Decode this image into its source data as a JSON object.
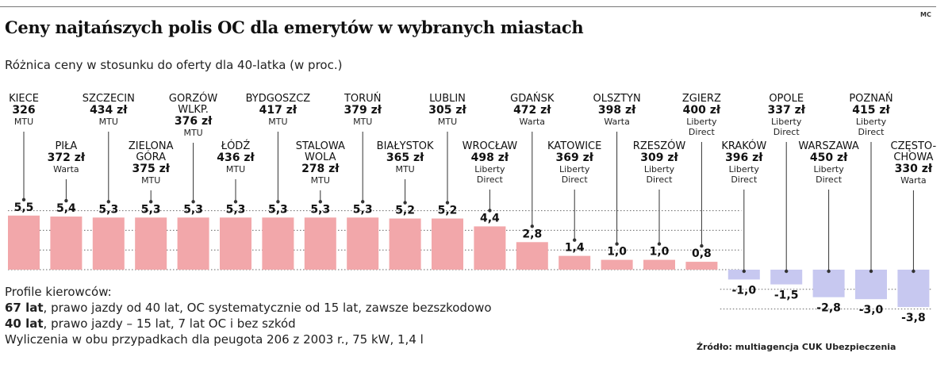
{
  "header": {
    "title": "Ceny najtańszych polis OC dla emerytów w wybranych miastach",
    "subtitle": "Różnica ceny w stosunku do oferty dla 40-latka (w proc.)",
    "corner_mark": "MC"
  },
  "footer": {
    "heading": "Profile kierowców:",
    "line1_bold": "67 lat",
    "line1_rest": ", prawo jazdy od 40 lat, OC systematycznie od 15 lat, zawsze bezszkodowo",
    "line2_bold": "40 lat",
    "line2_rest": ", prawo jazdy – 15 lat, 7 lat OC i bez szkód",
    "line3": "Wyliczenia w obu przypadkach dla peugota 206 z 2003 r., 75 kW, 1,4 l",
    "source": "Źródło: multiagencja CUK Ubezpieczenia"
  },
  "colors": {
    "positive_bar": "#f2a7aa",
    "negative_bar": "#c7c8f0",
    "leader": "#333333"
  },
  "chart_data": {
    "type": "bar",
    "title": "Ceny najtańszych polis OC dla emerytów w wybranych miastach",
    "ylabel": "Różnica ceny w stosunku do oferty dla 40-latka (w proc.)",
    "ylim": [
      -4,
      6
    ],
    "grid": true,
    "categories": [
      "KIECE",
      "PIŁA",
      "SZCZECIN",
      "ZIELONA GÓRA",
      "GORZÓW WLKP.",
      "ŁÓDŹ",
      "BYDGOSZCZ",
      "STALOWA WOLA",
      "TORUŃ",
      "BIAŁYSTOK",
      "LUBLIN",
      "WROCŁAW",
      "GDAŃSK",
      "KATOWICE",
      "OLSZTYN",
      "RZESZÓW",
      "ZGIERZ",
      "KRAKÓW",
      "OPOLE",
      "WARSZAWA",
      "POZNAŃ",
      "CZĘSTOCHOWA"
    ],
    "values": [
      5.5,
      5.4,
      5.3,
      5.3,
      5.3,
      5.3,
      5.3,
      5.3,
      5.3,
      5.2,
      5.2,
      4.4,
      2.8,
      1.4,
      1.0,
      1.0,
      0.8,
      -1.0,
      -1.5,
      -2.8,
      -3.0,
      -3.8
    ],
    "value_labels": [
      "5,5",
      "5,4",
      "5,3",
      "5,3",
      "5,3",
      "5,3",
      "5,3",
      "5,3",
      "5,3",
      "5,2",
      "5,2",
      "4,4",
      "2,8",
      "1,4",
      "1,0",
      "1,0",
      "0,8",
      "-1,0",
      "-1,5",
      "-2,8",
      "-3,0",
      "-3,8"
    ],
    "cities": [
      {
        "name": [
          "KIECE"
        ],
        "price": "326",
        "insurer": [
          "MTU"
        ],
        "level": "high"
      },
      {
        "name": [
          "PIŁA"
        ],
        "price": "372 zł",
        "insurer": [
          "Warta"
        ],
        "level": "low"
      },
      {
        "name": [
          "SZCZECIN"
        ],
        "price": "434 zł",
        "insurer": [
          "MTU"
        ],
        "level": "high"
      },
      {
        "name": [
          "ZIELONA",
          "GÓRA"
        ],
        "price": "375 zł",
        "insurer": [
          "MTU"
        ],
        "level": "low"
      },
      {
        "name": [
          "GORZÓW",
          "WLKP."
        ],
        "price": "376 zł",
        "insurer": [
          "MTU"
        ],
        "level": "high"
      },
      {
        "name": [
          "ŁÓDŹ"
        ],
        "price": "436 zł",
        "insurer": [
          "MTU"
        ],
        "level": "low"
      },
      {
        "name": [
          "BYDGOSZCZ"
        ],
        "price": "417 zł",
        "insurer": [
          "MTU"
        ],
        "level": "high"
      },
      {
        "name": [
          "STALOWA",
          "WOLA"
        ],
        "price": "278 zł",
        "insurer": [
          "MTU"
        ],
        "level": "low"
      },
      {
        "name": [
          "TORUŃ"
        ],
        "price": "379 zł",
        "insurer": [
          "MTU"
        ],
        "level": "high"
      },
      {
        "name": [
          "BIAŁYSTOK"
        ],
        "price": "365 zł",
        "insurer": [
          "MTU"
        ],
        "level": "low"
      },
      {
        "name": [
          "LUBLIN"
        ],
        "price": "305 zł",
        "insurer": [
          "MTU"
        ],
        "level": "high"
      },
      {
        "name": [
          "WROCŁAW"
        ],
        "price": "498 zł",
        "insurer": [
          "Liberty",
          "Direct"
        ],
        "level": "low"
      },
      {
        "name": [
          "GDAŃSK"
        ],
        "price": "472 zł",
        "insurer": [
          "Warta"
        ],
        "level": "high"
      },
      {
        "name": [
          "KATOWICE"
        ],
        "price": "369 zł",
        "insurer": [
          "Liberty",
          "Direct"
        ],
        "level": "low"
      },
      {
        "name": [
          "OLSZTYN"
        ],
        "price": "398 zł",
        "insurer": [
          "Warta"
        ],
        "level": "high"
      },
      {
        "name": [
          "RZESZÓW"
        ],
        "price": "309 zł",
        "insurer": [
          "Liberty",
          "Direct"
        ],
        "level": "low"
      },
      {
        "name": [
          "ZGIERZ"
        ],
        "price": "400 zł",
        "insurer": [
          "Liberty",
          "Direct"
        ],
        "level": "high"
      },
      {
        "name": [
          "KRAKÓW"
        ],
        "price": "396 zł",
        "insurer": [
          "Liberty",
          "Direct"
        ],
        "level": "low"
      },
      {
        "name": [
          "OPOLE"
        ],
        "price": "337 zł",
        "insurer": [
          "Liberty",
          "Direct"
        ],
        "level": "high"
      },
      {
        "name": [
          "WARSZAWA"
        ],
        "price": "450 zł",
        "insurer": [
          "Liberty",
          "Direct"
        ],
        "level": "low"
      },
      {
        "name": [
          "POZNAŃ"
        ],
        "price": "415 zł",
        "insurer": [
          "Liberty",
          "Direct"
        ],
        "level": "high"
      },
      {
        "name": [
          "CZĘSTO-",
          "CHOWA"
        ],
        "price": "330 zł",
        "insurer": [
          "Warta"
        ],
        "level": "low"
      }
    ]
  }
}
